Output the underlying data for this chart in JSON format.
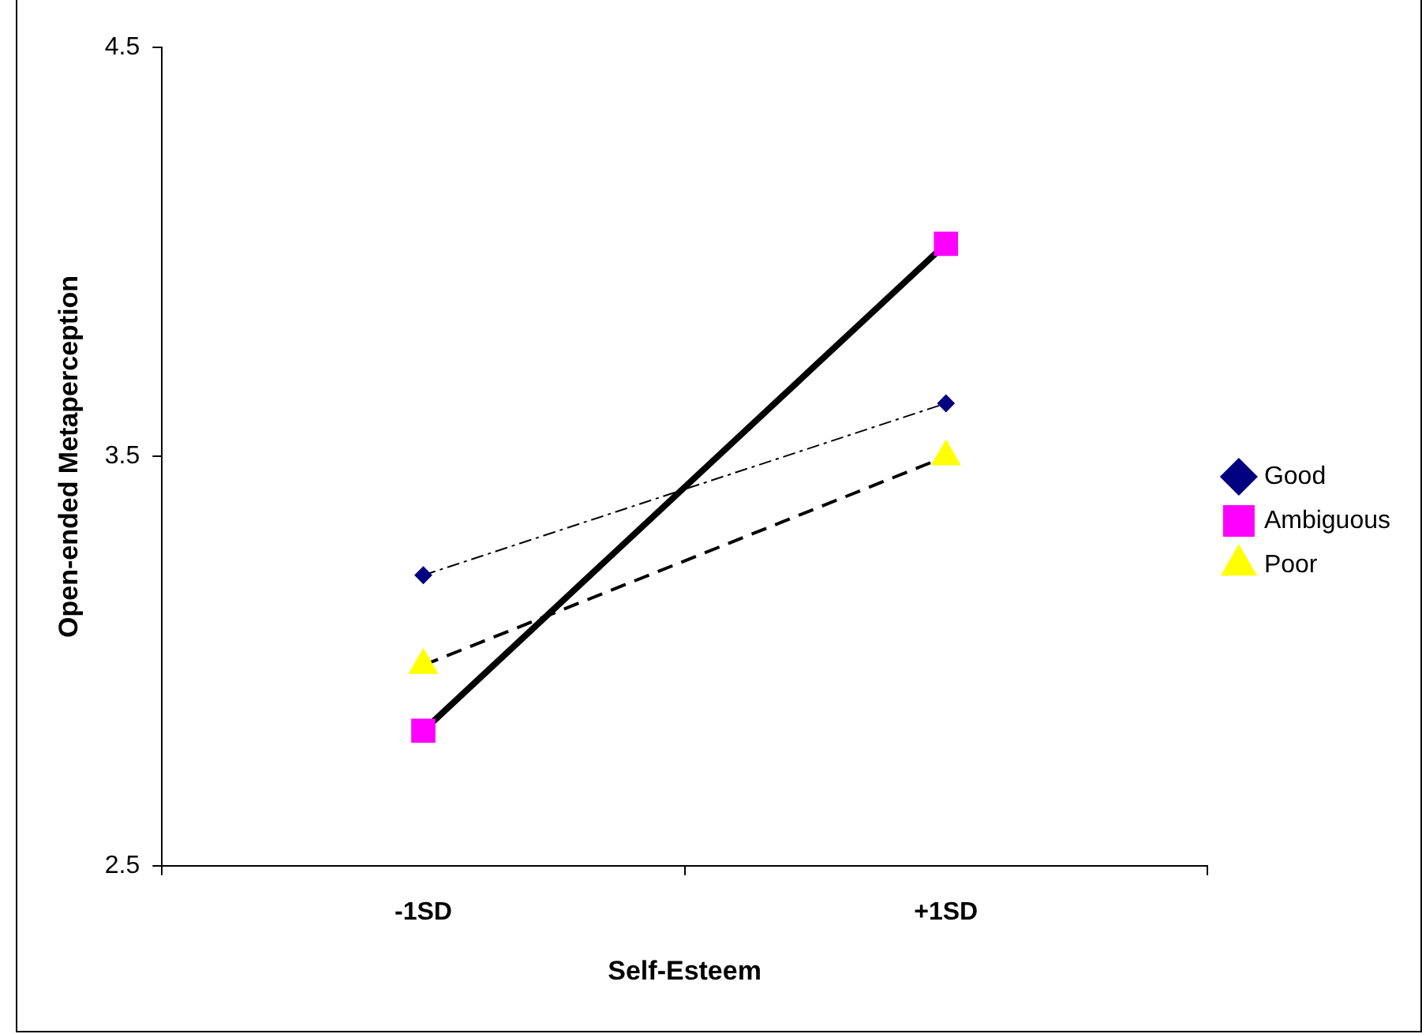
{
  "chart_data": {
    "type": "line",
    "xlabel": "Self-Esteem",
    "ylabel": "Open-ended Metaperception",
    "categories": [
      "-1SD",
      "+1SD"
    ],
    "series": [
      {
        "name": "Good",
        "color": "#000080",
        "values": [
          3.21,
          3.63
        ],
        "marker": "diamond",
        "line_style": "dashdot"
      },
      {
        "name": "Ambiguous",
        "color": "#ff00ff",
        "values": [
          2.83,
          4.02
        ],
        "marker": "square",
        "line_style": "solid"
      },
      {
        "name": "Poor",
        "color": "#ffff00",
        "values": [
          2.99,
          3.5
        ],
        "marker": "triangle",
        "line_style": "dashed"
      }
    ],
    "ylim": [
      2.5,
      4.5
    ],
    "yticks": [
      2.5,
      3.5,
      4.5
    ],
    "grid": false,
    "legend": "right"
  }
}
